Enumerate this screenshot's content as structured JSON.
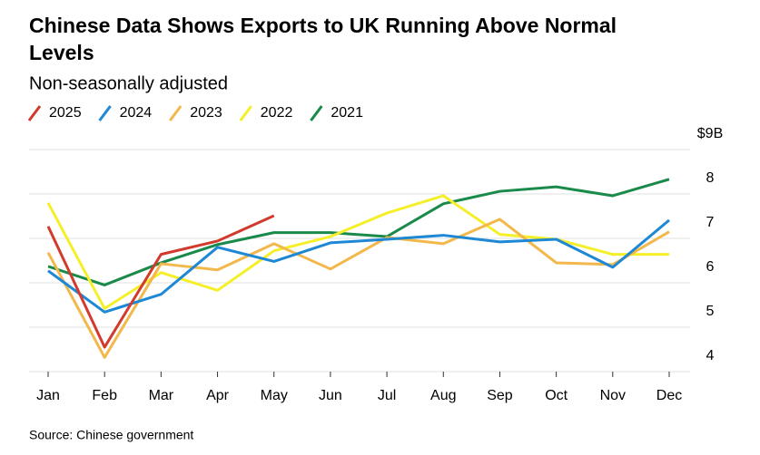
{
  "chart_data": {
    "type": "line",
    "title": "Chinese Data Shows Exports to UK Running Above Normal Levels",
    "subtitle": "Non-seasonally adjusted",
    "source": "Source: Chinese government",
    "categories": [
      "Jan",
      "Feb",
      "Mar",
      "Apr",
      "May",
      "Jun",
      "Jul",
      "Aug",
      "Sep",
      "Oct",
      "Nov",
      "Dec"
    ],
    "series": [
      {
        "name": "2025",
        "color": "#d13a2c",
        "values": [
          7.27,
          4.55,
          6.64,
          6.94,
          7.51,
          null,
          null,
          null,
          null,
          null,
          null,
          null
        ]
      },
      {
        "name": "2024",
        "color": "#1e88d4",
        "values": [
          6.27,
          5.34,
          5.74,
          6.8,
          6.48,
          6.9,
          6.98,
          7.07,
          6.92,
          6.98,
          6.35,
          7.41
        ]
      },
      {
        "name": "2023",
        "color": "#f2b84b",
        "values": [
          6.68,
          4.32,
          6.43,
          6.29,
          6.88,
          6.31,
          7.02,
          6.88,
          7.43,
          6.45,
          6.41,
          7.15
        ]
      },
      {
        "name": "2022",
        "color": "#f5ef2a",
        "values": [
          7.8,
          5.42,
          6.23,
          5.83,
          6.72,
          7.04,
          7.57,
          7.96,
          7.09,
          6.98,
          6.64,
          6.64
        ]
      },
      {
        "name": "2021",
        "color": "#1a8a4a",
        "values": [
          6.37,
          5.95,
          6.45,
          6.86,
          7.13,
          7.13,
          7.04,
          7.78,
          8.06,
          8.16,
          7.96,
          8.33
        ]
      }
    ],
    "ylim": [
      4,
      9
    ],
    "yticks": [
      4,
      5,
      6,
      7,
      8,
      {
        "value": 9,
        "label": "$9B"
      }
    ],
    "grid": true
  }
}
